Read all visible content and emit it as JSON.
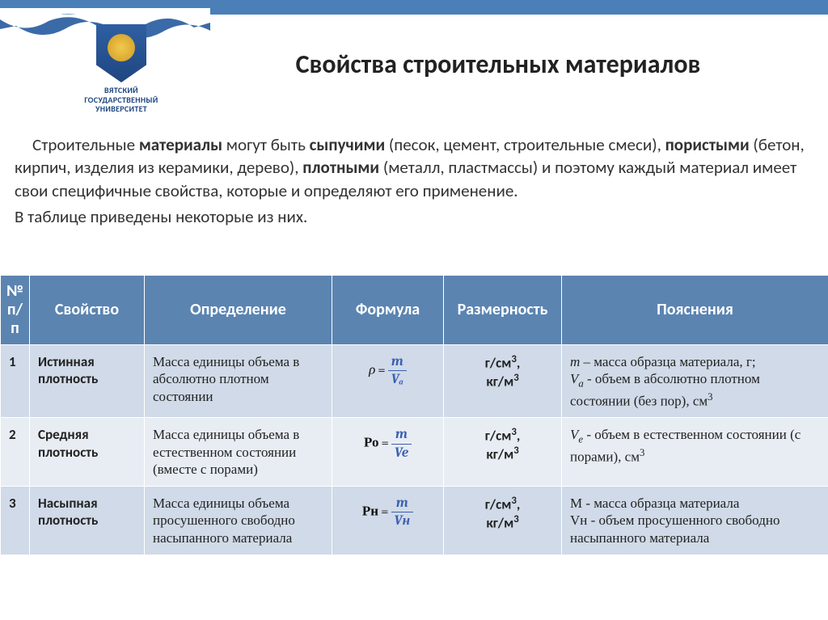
{
  "palette": {
    "header_band": "#4a7fb8",
    "table_header_bg": "#5B84B1",
    "row_odd_bg": "#d0dae8",
    "row_even_bg": "#e8edf4",
    "formula_color": "#3a5fb0",
    "uni_text": "#1e4680"
  },
  "university": {
    "line1": "ВЯТСКИЙ",
    "line2": "ГОСУДАРСТВЕННЫЙ",
    "line3": "УНИВЕРСИТЕТ"
  },
  "title": "Свойства строительных материалов",
  "intro": {
    "p1_pre": "Строительные ",
    "p1_b1": "материалы",
    "p1_mid1": " могут быть ",
    "p1_b2": "сыпучими",
    "p1_mid2": " (песок, цемент, строительные смеси),  ",
    "p1_b3": "пористыми",
    "p1_mid3": " (бетон,  кирпич, изделия из керамики, дерево), ",
    "p1_b4": "плотными",
    "p1_tail": " (металл, пластмассы) и поэтому каждый материал имеет свои специфичные свойства, которые и определяют его применение.",
    "p2": "В таблице приведены некоторые из них."
  },
  "table": {
    "headers": {
      "num": "№ п/п",
      "prop": "Свойство",
      "def": "Определение",
      "formula": "Формула",
      "unit": "Размерность",
      "note": "Пояснения"
    },
    "rows": [
      {
        "n": "1",
        "prop": "Истинная плотность",
        "def": "Масса единицы объема в абсолютно плотном состоянии",
        "formula": {
          "left": "ρ",
          "num": "m",
          "den": "Vₐ",
          "left_italic": true
        },
        "unit_html": "г/см<sup>3</sup>,<br>кг/м<sup>3</sup>",
        "note_html": "<i>m</i> – масса образца материала, г;<br><i>V<sub>a</sub></i> - объем в абсолютно плотном состоянии (без пор), см<sup>3</sup>"
      },
      {
        "n": "2",
        "prop": "Средняя плотность",
        "def": "Масса единицы объема в естественном состоянии (вместе с порами)",
        "formula": {
          "left": "Ро",
          "num": "m",
          "den": "Ve",
          "left_italic": false
        },
        "unit_html": "г/см<sup>3</sup>,<br>кг/м<sup>3</sup>",
        "note_html": "<i>V<sub>e</sub></i> - объем в естественном состоянии (с порами), см<sup>3</sup>"
      },
      {
        "n": "3",
        "prop": "Насыпная плотность",
        "def": "Масса единицы объема просушенного свободно насыпанного материала",
        "formula": {
          "left": "Рн",
          "num": "m",
          "den": "Vн",
          "left_italic": false
        },
        "unit_html": "г/см<sup>3</sup>,<br>кг/м<sup>3</sup>",
        "note_html": "М - масса образца материала<br>Vн - объем просушенного свободно насыпанного материала"
      }
    ]
  }
}
